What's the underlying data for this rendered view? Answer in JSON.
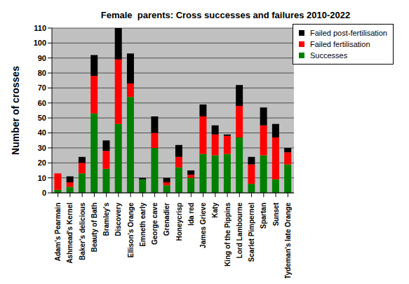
{
  "chart_data": {
    "type": "bar",
    "title": "Female  parents: Cross successes and failures 2010-2022",
    "y_label": "Number of crosses",
    "categories": [
      "Adam's Pearmain",
      "Ashmead's Kernel",
      "Baker's delicious",
      "Beauty of Bath",
      "Bramley's",
      "Discovery",
      "Ellison's Orange",
      "Emneth early",
      "George cave",
      "Grenadier",
      "Honeycrisp",
      "Ida red",
      "James Grieve",
      "Katy",
      "King of the Pippins",
      "Lord Lambourne",
      "Scarlet Pimpernel",
      "Spartan",
      "Sunset",
      "Tydeman's late Orange"
    ],
    "series": [
      {
        "name": "Successes",
        "color": "#008000",
        "values": [
          2,
          4,
          13,
          53,
          16,
          46,
          64,
          9,
          30,
          5,
          17,
          10,
          26,
          25,
          26,
          37,
          6,
          25,
          9,
          19
        ]
      },
      {
        "name": "Failed fertilisation",
        "color": "#ff0000",
        "values": [
          11,
          3,
          7,
          25,
          12,
          43,
          9,
          0,
          10,
          2,
          7,
          2,
          25,
          14,
          12,
          21,
          13,
          20,
          28,
          8
        ]
      },
      {
        "name": "Failed post-fertilisation",
        "color": "#000000",
        "values": [
          0,
          4,
          4,
          14,
          7,
          21,
          20,
          1,
          11,
          3,
          8,
          3,
          8,
          6,
          1,
          14,
          5,
          12,
          9,
          3
        ]
      }
    ],
    "stacked": true,
    "ylim": [
      0,
      110
    ],
    "yticks": [
      0,
      10,
      20,
      30,
      40,
      50,
      60,
      70,
      80,
      90,
      100,
      110
    ],
    "grid": true,
    "legend": "top-right"
  }
}
